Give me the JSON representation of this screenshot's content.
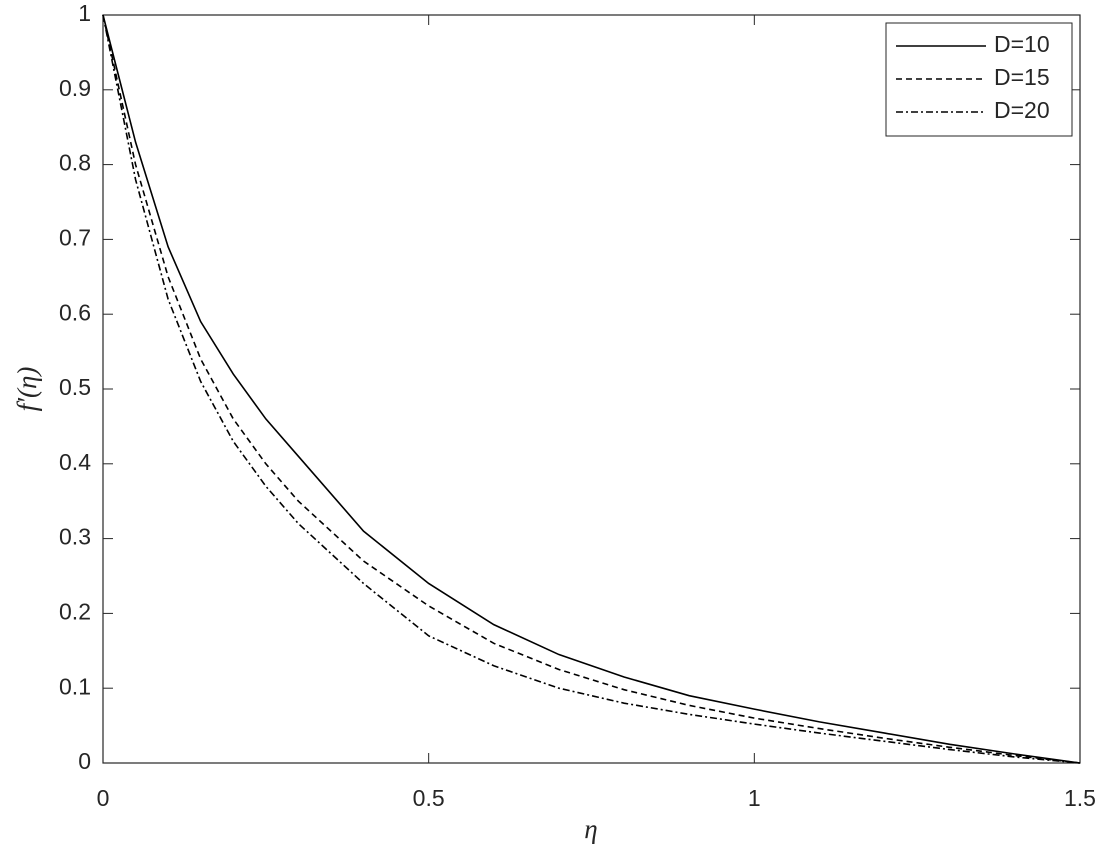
{
  "chart_data": {
    "type": "line",
    "x_label": "η",
    "y_label": "f′(η)",
    "x": [
      0,
      0.05,
      0.1,
      0.15,
      0.2,
      0.25,
      0.3,
      0.4,
      0.5,
      0.6,
      0.7,
      0.8,
      0.9,
      1.0,
      1.1,
      1.2,
      1.3,
      1.4,
      1.5
    ],
    "series": [
      {
        "name": "D=10",
        "color": "#000000",
        "linestyle": "solid",
        "values": [
          1,
          0.83,
          0.69,
          0.59,
          0.52,
          0.46,
          0.41,
          0.31,
          0.24,
          0.185,
          0.145,
          0.115,
          0.09,
          0.072,
          0.055,
          0.04,
          0.025,
          0.012,
          0
        ]
      },
      {
        "name": "D=15",
        "color": "#000000",
        "linestyle": "dashed",
        "values": [
          1,
          0.8,
          0.65,
          0.54,
          0.46,
          0.4,
          0.35,
          0.27,
          0.21,
          0.16,
          0.125,
          0.098,
          0.077,
          0.06,
          0.046,
          0.033,
          0.021,
          0.01,
          0
        ]
      },
      {
        "name": "D=20",
        "color": "#000000",
        "linestyle": "dashdot",
        "values": [
          1,
          0.78,
          0.62,
          0.51,
          0.43,
          0.37,
          0.32,
          0.24,
          0.17,
          0.13,
          0.1,
          0.08,
          0.065,
          0.052,
          0.04,
          0.029,
          0.018,
          0.008,
          0
        ]
      }
    ],
    "xlim": [
      0,
      1.5
    ],
    "xticks": [
      0,
      0.5,
      1,
      1.5
    ],
    "ylim": [
      0,
      1
    ],
    "yticks": [
      0,
      0.1,
      0.2,
      0.3,
      0.4,
      0.5,
      0.6,
      0.7,
      0.8,
      0.9,
      1
    ],
    "grid": false,
    "legend": "upper right"
  }
}
